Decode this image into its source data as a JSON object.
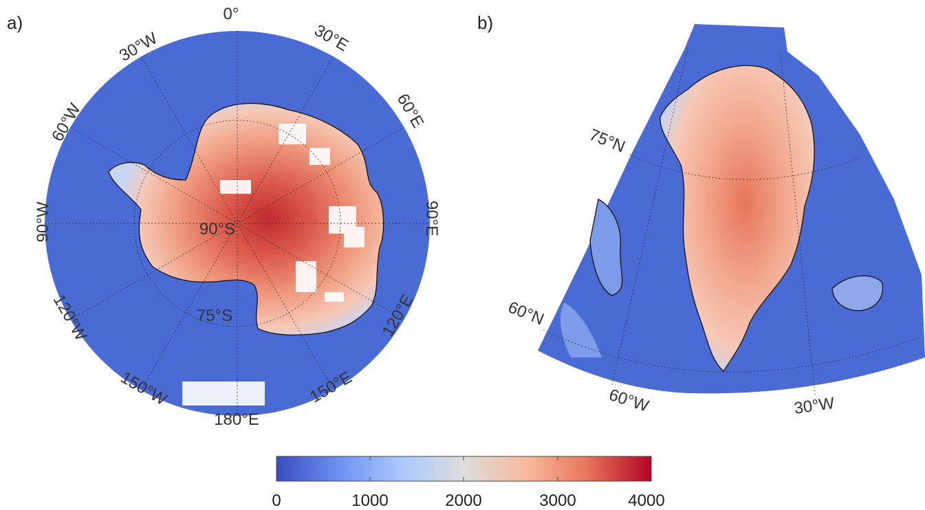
{
  "panels": {
    "a": {
      "label": "a)",
      "longitude_labels": [
        "0°",
        "30°E",
        "60°E",
        "90°E",
        "120°E",
        "150°E",
        "180°E",
        "150°W",
        "120°W",
        "90°W",
        "60°W",
        "30°W"
      ],
      "latitude_labels": [
        "90°S",
        "75°S"
      ]
    },
    "b": {
      "label": "b)",
      "latitude_labels": [
        "75°N",
        "60°N"
      ],
      "longitude_labels": [
        "60°W",
        "30°W"
      ]
    }
  },
  "colorbar": {
    "ticks": [
      "0",
      "1000",
      "2000",
      "3000",
      "4000"
    ],
    "range": [
      0,
      4000
    ],
    "colors": [
      "#3b4cc0",
      "#6f92f3",
      "#aac7fd",
      "#dddddd",
      "#f7b89c",
      "#e7745b",
      "#b40426"
    ]
  },
  "colors": {
    "ocean": "#4a6bd4",
    "graticule": "#222222",
    "coastline": "#111111",
    "missing": "#ffffff"
  }
}
